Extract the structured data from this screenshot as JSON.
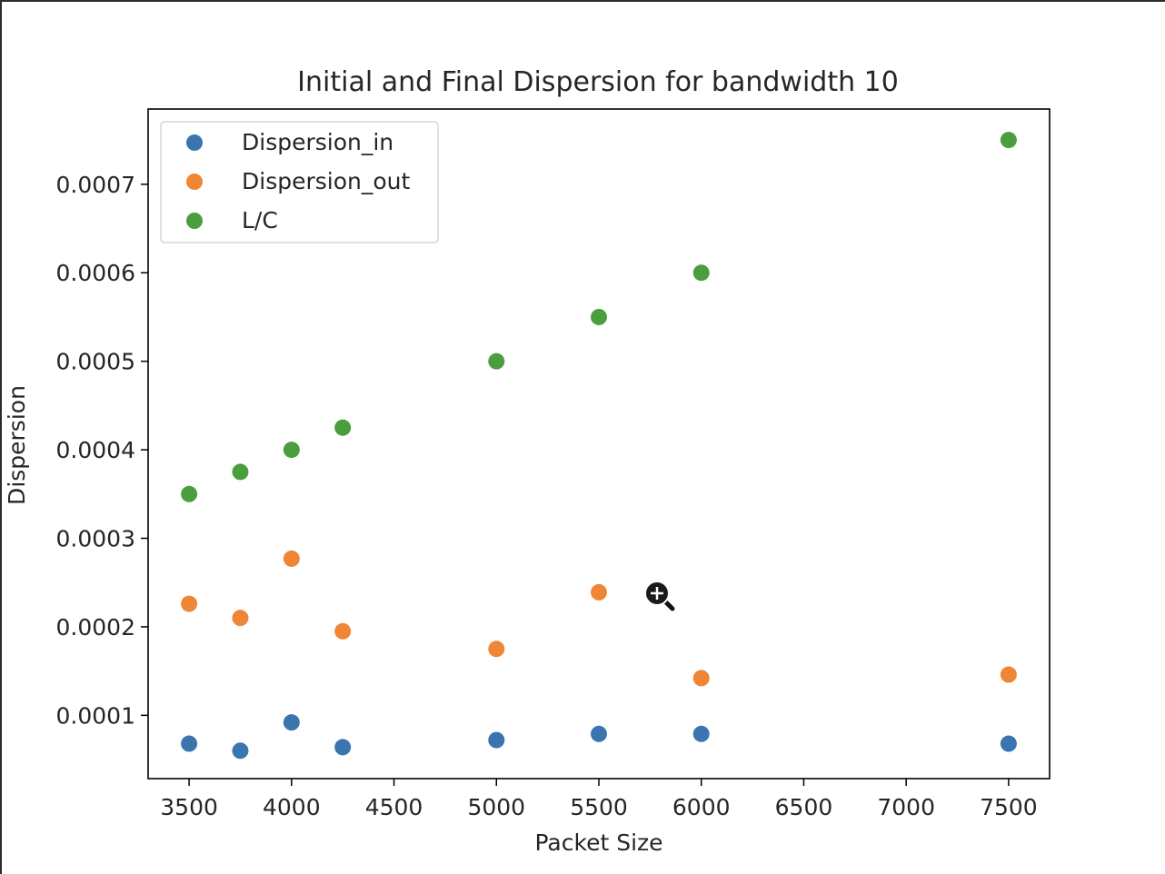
{
  "chart_data": {
    "type": "scatter",
    "title": "Initial and Final Dispersion for bandwidth 10",
    "xlabel": "Packet Size",
    "ylabel": "Dispersion",
    "xlim": [
      3300,
      7700
    ],
    "ylim": [
      2.85e-05,
      0.000785
    ],
    "xticks": [
      3500,
      4000,
      4500,
      5000,
      5500,
      6000,
      6500,
      7000,
      7500
    ],
    "xtick_labels": [
      "3500",
      "4000",
      "4500",
      "5000",
      "5500",
      "6000",
      "6500",
      "7000",
      "7500"
    ],
    "yticks": [
      0.0001,
      0.0002,
      0.0003,
      0.0004,
      0.0005,
      0.0006,
      0.0007
    ],
    "ytick_labels": [
      "0.0001",
      "0.0002",
      "0.0003",
      "0.0004",
      "0.0005",
      "0.0006",
      "0.0007"
    ],
    "grid": false,
    "legend_position": "top-left",
    "series": [
      {
        "name": "Dispersion_in",
        "color": "#3a75b0",
        "x": [
          3500,
          3750,
          4000,
          4250,
          5000,
          5500,
          6000,
          7500
        ],
        "y": [
          6.8e-05,
          6e-05,
          9.2e-05,
          6.4e-05,
          7.2e-05,
          7.9e-05,
          7.9e-05,
          6.8e-05
        ]
      },
      {
        "name": "Dispersion_out",
        "color": "#ef8636",
        "x": [
          3500,
          3750,
          4000,
          4250,
          5000,
          5500,
          6000,
          7500
        ],
        "y": [
          0.000226,
          0.00021,
          0.000277,
          0.000195,
          0.000175,
          0.000239,
          0.000142,
          0.000146
        ]
      },
      {
        "name": "L/C",
        "color": "#4b9e3e",
        "x": [
          3500,
          3750,
          4000,
          4250,
          5000,
          5500,
          6000,
          7500
        ],
        "y": [
          0.00035,
          0.000375,
          0.0004,
          0.000425,
          0.0005,
          0.00055,
          0.0006,
          0.00075
        ]
      }
    ]
  },
  "cursor": {
    "icon": "zoom-in-cursor-icon"
  }
}
